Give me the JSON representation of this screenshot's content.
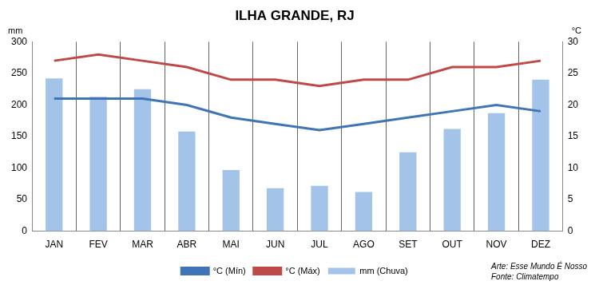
{
  "chart_data": {
    "type": "bar",
    "title": "ILHA GRANDE, RJ",
    "ylabel": "mm",
    "y2label": "°C",
    "categories": [
      "JAN",
      "FEV",
      "MAR",
      "ABR",
      "MAI",
      "JUN",
      "JUL",
      "AGO",
      "SET",
      "OUT",
      "NOV",
      "DEZ"
    ],
    "series": [
      {
        "name": "mm (Chuva)",
        "type": "bar",
        "color": "#a3c3e9",
        "values": [
          242,
          213,
          225,
          158,
          97,
          68,
          72,
          62,
          125,
          162,
          187,
          240
        ]
      },
      {
        "name": "°C (Mín)",
        "type": "line",
        "axis": "y2",
        "color": "#3f74b6",
        "values": [
          21,
          21,
          21,
          20,
          18,
          17,
          16,
          17,
          18,
          19,
          20,
          19
        ]
      },
      {
        "name": "°C (Máx)",
        "type": "line",
        "axis": "y2",
        "color": "#be4a47",
        "values": [
          27,
          28,
          27,
          26,
          24,
          24,
          23,
          24,
          24,
          26,
          26,
          27
        ]
      }
    ],
    "ylim": [
      0,
      300
    ],
    "yticks": [
      0,
      50,
      100,
      150,
      200,
      250,
      300
    ],
    "y2lim": [
      0,
      30
    ],
    "y2ticks": [
      0,
      5,
      10,
      15,
      20,
      25,
      30
    ],
    "grid": "x",
    "legend": "bottom",
    "annotations": [
      "Arte: Esse Mundo É Nosso",
      "Fonte: Climatempo"
    ]
  }
}
